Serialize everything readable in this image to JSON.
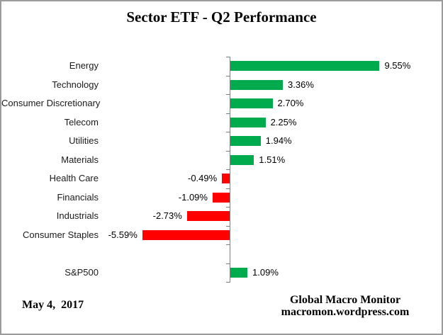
{
  "chart_data": {
    "type": "bar",
    "orientation": "horizontal",
    "title": "Sector ETF - Q2 Performance",
    "categories": [
      "Energy",
      "Technology",
      "Consumer Discretionary",
      "Telecom",
      "Utilities",
      "Materials",
      "Health Care",
      "Financials",
      "Industrials",
      "Consumer Staples",
      "",
      "S&P500"
    ],
    "values": [
      9.55,
      3.36,
      2.7,
      2.25,
      1.94,
      1.51,
      -0.49,
      -1.09,
      -2.73,
      -5.59,
      null,
      1.09
    ],
    "value_labels": [
      "9.55%",
      "3.36%",
      "2.70%",
      "2.25%",
      "1.94%",
      "1.51%",
      "-0.49%",
      "-1.09%",
      "-2.73%",
      "-5.59%",
      "",
      "1.09%"
    ],
    "xlim": [
      -6,
      10
    ],
    "grid": false,
    "legend": false,
    "positive_color": "#00AB4E",
    "negative_color": "#FF0000",
    "axis_color": "#808080",
    "label_color": "#000000"
  },
  "footer": {
    "date": "May 4,  2017",
    "credit_line1": "Global Macro Monitor",
    "credit_line2": "macromon.wordpress.com"
  }
}
